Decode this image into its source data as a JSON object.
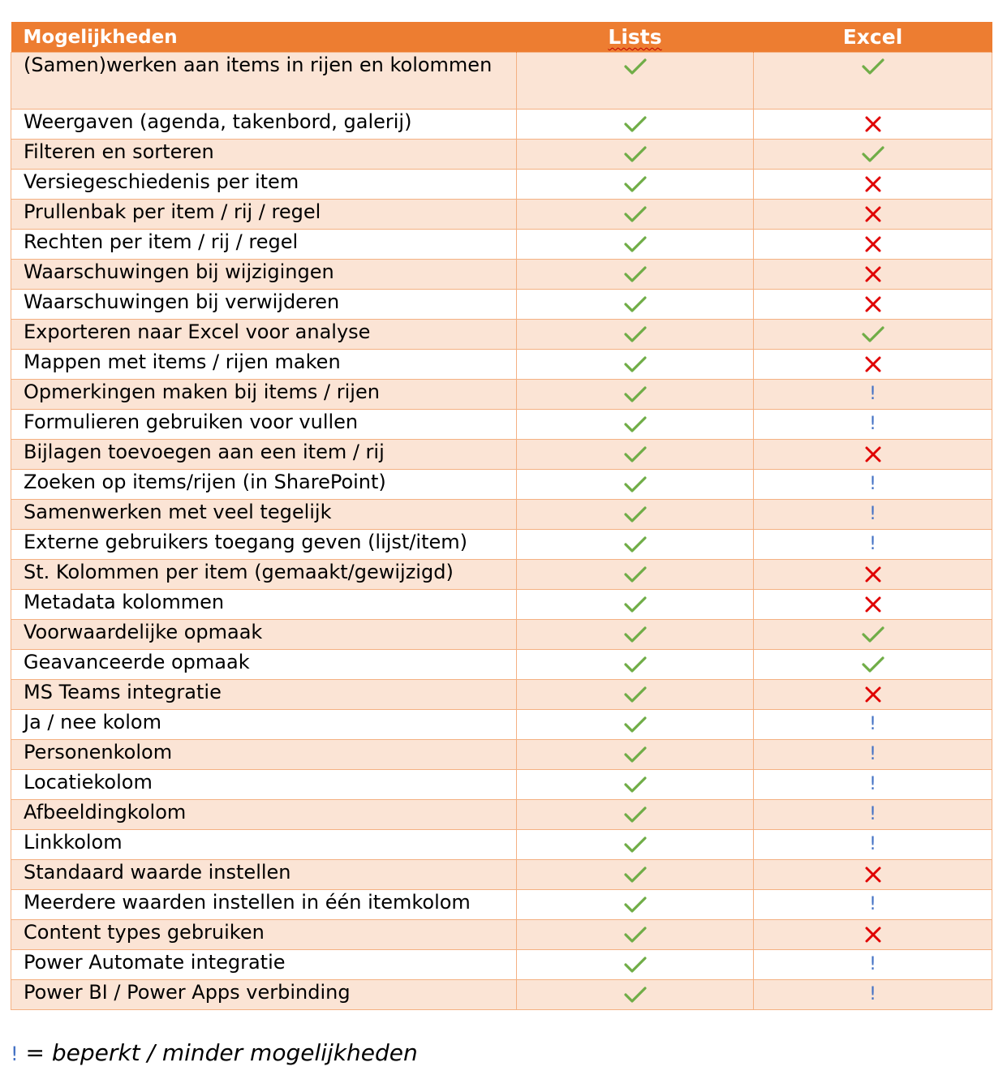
{
  "header": {
    "feature": "Mogelijkheden",
    "lists": "Lists",
    "excel": "Excel"
  },
  "colors": {
    "header_bg": "#ed7d31",
    "row_shaded": "#fbe4d5",
    "border": "#f4b183",
    "check": "#70ad47",
    "cross": "#e00000",
    "limited": "#4472c4"
  },
  "rows": [
    {
      "feature": "(Samen)werken aan items in rijen en kolommen",
      "lists": "check",
      "excel": "check"
    },
    {
      "feature": "Weergaven (agenda, takenbord, galerij)",
      "lists": "check",
      "excel": "cross"
    },
    {
      "feature": "Filteren en sorteren",
      "lists": "check",
      "excel": "check"
    },
    {
      "feature": "Versiegeschiedenis per item",
      "lists": "check",
      "excel": "cross"
    },
    {
      "feature": "Prullenbak per item / rij / regel",
      "lists": "check",
      "excel": "cross"
    },
    {
      "feature": "Rechten per item / rij / regel",
      "lists": "check",
      "excel": "cross"
    },
    {
      "feature": "Waarschuwingen bij wijzigingen",
      "lists": "check",
      "excel": "cross"
    },
    {
      "feature": "Waarschuwingen bij verwijderen",
      "lists": "check",
      "excel": "cross"
    },
    {
      "feature": "Exporteren naar Excel voor analyse",
      "lists": "check",
      "excel": "check"
    },
    {
      "feature": "Mappen met items / rijen maken",
      "lists": "check",
      "excel": "cross"
    },
    {
      "feature": "Opmerkingen maken bij items / rijen",
      "lists": "check",
      "excel": "limited"
    },
    {
      "feature": "Formulieren gebruiken voor vullen",
      "lists": "check",
      "excel": "limited"
    },
    {
      "feature": "Bijlagen toevoegen aan een item / rij",
      "lists": "check",
      "excel": "cross"
    },
    {
      "feature": "Zoeken op items/rijen (in SharePoint)",
      "lists": "check",
      "excel": "limited"
    },
    {
      "feature": "Samenwerken met veel tegelijk",
      "lists": "check",
      "excel": "limited"
    },
    {
      "feature": "Externe gebruikers toegang geven (lijst/item)",
      "lists": "check",
      "excel": "limited"
    },
    {
      "feature": "St. Kolommen per item (gemaakt/gewijzigd)",
      "lists": "check",
      "excel": "cross"
    },
    {
      "feature": "Metadata kolommen",
      "lists": "check",
      "excel": "cross"
    },
    {
      "feature": "Voorwaardelijke opmaak",
      "lists": "check",
      "excel": "check"
    },
    {
      "feature": "Geavanceerde opmaak",
      "lists": "check",
      "excel": "check"
    },
    {
      "feature": "MS Teams integratie",
      "lists": "check",
      "excel": "cross"
    },
    {
      "feature": "Ja / nee kolom",
      "lists": "check",
      "excel": "limited"
    },
    {
      "feature": "Personenkolom",
      "lists": "check",
      "excel": "limited"
    },
    {
      "feature": "Locatiekolom",
      "lists": "check",
      "excel": "limited"
    },
    {
      "feature": "Afbeeldingkolom",
      "lists": "check",
      "excel": "limited"
    },
    {
      "feature": "Linkkolom",
      "lists": "check",
      "excel": "limited"
    },
    {
      "feature": "Standaard waarde instellen",
      "lists": "check",
      "excel": "cross"
    },
    {
      "feature": "Meerdere waarden instellen in één itemkolom",
      "lists": "check",
      "excel": "limited"
    },
    {
      "feature": "Content types gebruiken",
      "lists": "check",
      "excel": "cross"
    },
    {
      "feature": "Power Automate integratie",
      "lists": "check",
      "excel": "limited"
    },
    {
      "feature": "Power BI / Power Apps verbinding",
      "lists": "check",
      "excel": "limited"
    }
  ],
  "limited_symbol": "!",
  "legend": {
    "mark": "!",
    "text": "= beperkt / minder mogelijkheden"
  }
}
